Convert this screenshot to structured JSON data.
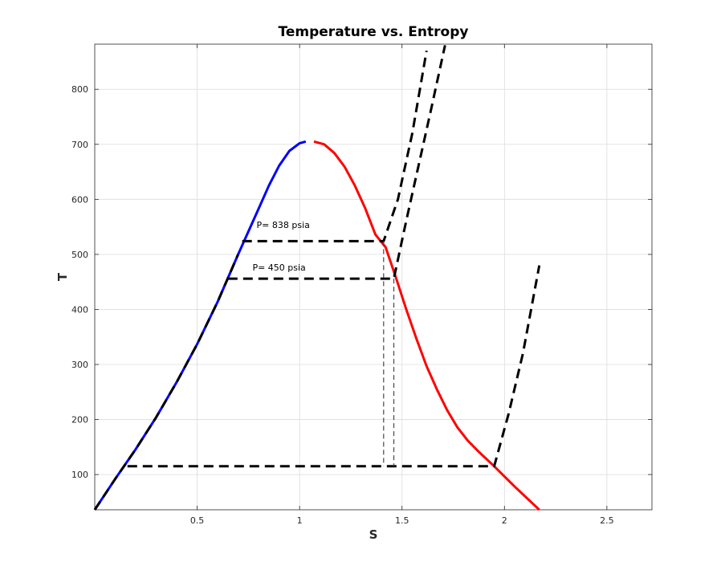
{
  "chart_data": {
    "type": "line",
    "title": "Temperature vs. Entropy",
    "xlabel": "S",
    "ylabel": "T",
    "xlim": [
      0,
      2.72
    ],
    "ylim": [
      36,
      882
    ],
    "xticks": [
      0.5,
      1,
      1.5,
      2,
      2.5
    ],
    "xtick_labels": [
      "0.5",
      "1",
      "1.5",
      "2",
      "2.5"
    ],
    "yticks": [
      100,
      200,
      300,
      400,
      500,
      600,
      700,
      800
    ],
    "ytick_labels": [
      "100",
      "200",
      "300",
      "400",
      "500",
      "600",
      "700",
      "800"
    ],
    "grid": true,
    "colors": {
      "liquid": "#0000ff",
      "vapor": "#ff0000",
      "process": "#000000",
      "drop": "#444444"
    },
    "series": [
      {
        "role": "saturated-liquid",
        "color": "#0000ff",
        "style": "solid",
        "x": [
          0,
          0.1,
          0.2,
          0.3,
          0.4,
          0.5,
          0.6,
          0.7,
          0.8,
          0.85,
          0.9,
          0.95,
          1.0,
          1.03
        ],
        "y": [
          36,
          92,
          146,
          204,
          268,
          337,
          414,
          500,
          583,
          625,
          661,
          688,
          702,
          705
        ]
      },
      {
        "role": "saturated-vapor",
        "color": "#ff0000",
        "style": "solid",
        "x": [
          1.07,
          1.12,
          1.17,
          1.22,
          1.27,
          1.32,
          1.37,
          1.42,
          1.47,
          1.52,
          1.57,
          1.62,
          1.67,
          1.72,
          1.77,
          1.82,
          1.87,
          1.95,
          2.05,
          2.17
        ],
        "y": [
          705,
          700,
          684,
          659,
          625,
          584,
          536,
          513,
          458,
          401,
          347,
          297,
          255,
          217,
          186,
          162,
          143,
          115,
          78,
          36
        ]
      },
      {
        "role": "liquid-line-dashed",
        "color": "#000000",
        "style": "dashed",
        "x": [
          0,
          0.1,
          0.2,
          0.3,
          0.4,
          0.5,
          0.6,
          0.7
        ],
        "y": [
          36,
          92,
          146,
          204,
          268,
          337,
          414,
          500
        ]
      },
      {
        "role": "isobar-838",
        "color": "#000000",
        "style": "dashed",
        "x": [
          0.72,
          1.41,
          1.48,
          1.55,
          1.62
        ],
        "y": [
          524,
          524,
          600,
          720,
          870
        ]
      },
      {
        "role": "isobar-450",
        "color": "#000000",
        "style": "dashed",
        "x": [
          0.65,
          1.46,
          1.52,
          1.58,
          1.64,
          1.71
        ],
        "y": [
          456,
          456,
          560,
          660,
          760,
          880
        ]
      },
      {
        "role": "condenser-line",
        "color": "#000000",
        "style": "dashed",
        "x": [
          0.16,
          1.95,
          2.02,
          2.09,
          2.17
        ],
        "y": [
          115,
          115,
          210,
          320,
          480
        ]
      },
      {
        "role": "drop-line-1",
        "color": "#444444",
        "style": "thin-dashed",
        "x": [
          1.41,
          1.41
        ],
        "y": [
          524,
          115
        ]
      },
      {
        "role": "drop-line-2",
        "color": "#444444",
        "style": "thin-dashed",
        "x": [
          1.46,
          1.46
        ],
        "y": [
          456,
          115
        ]
      }
    ],
    "annotations": [
      {
        "text": "P= 838 psia",
        "x": 0.92,
        "y": 548
      },
      {
        "text": "P= 450 psia",
        "x": 0.9,
        "y": 471
      }
    ]
  }
}
